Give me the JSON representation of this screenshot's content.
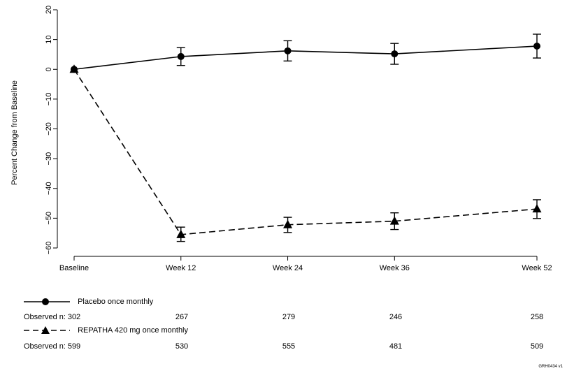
{
  "chart_data": {
    "type": "line",
    "title": "",
    "xlabel": "",
    "ylabel": "Percent Change from Baseline",
    "categories": [
      "Baseline",
      "Week 12",
      "Week 24",
      "Week 36",
      "Week 52"
    ],
    "x_numeric": [
      0,
      12,
      24,
      36,
      52
    ],
    "xlim": [
      0,
      52
    ],
    "ylim": [
      -60,
      20
    ],
    "yticks": [
      "20",
      "10",
      "0",
      "−10",
      "−20",
      "−30",
      "−40",
      "−50",
      "−60"
    ],
    "ytick_values": [
      20,
      10,
      0,
      -10,
      -20,
      -30,
      -40,
      -50,
      -60
    ],
    "series": [
      {
        "name": "Placebo once monthly",
        "marker": "circle",
        "line": "solid",
        "values": [
          0,
          4.3,
          6.2,
          5.2,
          7.8
        ],
        "error_low": [
          0,
          1.3,
          2.8,
          1.7,
          3.8
        ],
        "error_high": [
          0,
          7.3,
          9.6,
          8.7,
          11.8
        ]
      },
      {
        "name": "REPATHA 420 mg once monthly",
        "marker": "triangle",
        "line": "dashed",
        "values": [
          0,
          -55.5,
          -52.2,
          -51.0,
          -46.9
        ],
        "error_low": [
          0,
          -57.8,
          -54.8,
          -53.8,
          -50.1
        ],
        "error_high": [
          0,
          -53.0,
          -49.7,
          -48.2,
          -43.8
        ]
      }
    ],
    "grid": false,
    "legend": "below"
  },
  "observed": {
    "label": "Observed n:",
    "placebo": [
      "302",
      "267",
      "279",
      "246",
      "258"
    ],
    "repatha": [
      "599",
      "530",
      "555",
      "481",
      "509"
    ]
  },
  "footnote": "GRH0434 v1"
}
